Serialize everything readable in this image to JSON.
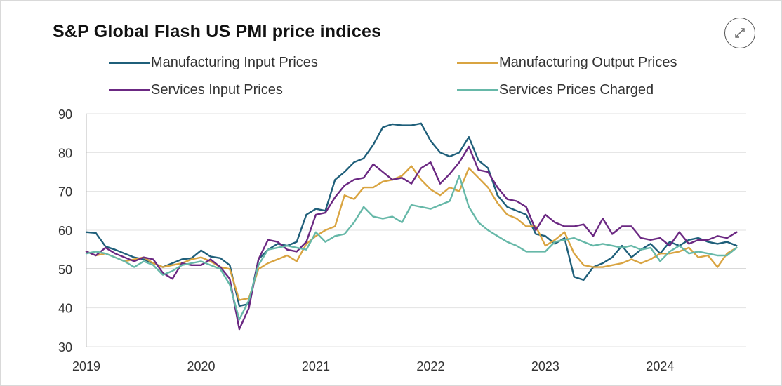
{
  "title": "S&P Global Flash US PMI price indices",
  "expand_icon": "expand-diagonal-arrows-icon",
  "chart_data": {
    "type": "line",
    "title": "S&P Global Flash US PMI price indices",
    "xlabel": "",
    "ylabel": "",
    "ylim": [
      30,
      90
    ],
    "xlim": [
      2019.0,
      2024.75
    ],
    "yticks": [
      "30",
      "40",
      "50",
      "60",
      "70",
      "80",
      "90"
    ],
    "xticks": [
      "2019",
      "2020",
      "2021",
      "2022",
      "2023",
      "2024"
    ],
    "grid": "horizontal",
    "legend_position": "top",
    "reference_line_y": 50,
    "x": [
      2019.0,
      2019.083,
      2019.167,
      2019.25,
      2019.333,
      2019.417,
      2019.5,
      2019.583,
      2019.667,
      2019.75,
      2019.833,
      2019.917,
      2020.0,
      2020.083,
      2020.167,
      2020.25,
      2020.333,
      2020.417,
      2020.5,
      2020.583,
      2020.667,
      2020.75,
      2020.833,
      2020.917,
      2021.0,
      2021.083,
      2021.167,
      2021.25,
      2021.333,
      2021.417,
      2021.5,
      2021.583,
      2021.667,
      2021.75,
      2021.833,
      2021.917,
      2022.0,
      2022.083,
      2022.167,
      2022.25,
      2022.333,
      2022.417,
      2022.5,
      2022.583,
      2022.667,
      2022.75,
      2022.833,
      2022.917,
      2023.0,
      2023.083,
      2023.167,
      2023.25,
      2023.333,
      2023.417,
      2023.5,
      2023.583,
      2023.667,
      2023.75,
      2023.833,
      2023.917,
      2024.0,
      2024.083,
      2024.167,
      2024.25,
      2024.333,
      2024.417,
      2024.5,
      2024.583,
      2024.667
    ],
    "series": [
      {
        "name": "Manufacturing Input Prices",
        "color": "#1f5f7a",
        "values": [
          59.5,
          59.3,
          55.8,
          55.0,
          54.0,
          53.0,
          52.5,
          51.5,
          50.5,
          51.5,
          52.5,
          52.8,
          54.8,
          53.2,
          52.8,
          51.0,
          40.5,
          41.0,
          52.5,
          55.0,
          56.5,
          56.0,
          57.0,
          64.0,
          65.5,
          65.0,
          73.0,
          75.0,
          77.5,
          78.5,
          82.0,
          86.5,
          87.3,
          87.0,
          87.0,
          87.5,
          83.0,
          80.0,
          79.0,
          80.0,
          84.0,
          78.0,
          76.0,
          69.0,
          66.0,
          65.0,
          64.0,
          59.0,
          58.5,
          56.5,
          58.0,
          48.0,
          47.2,
          50.5,
          51.5,
          53.0,
          56.0,
          53.0,
          55.0,
          56.5,
          54.0,
          57.0,
          56.0,
          57.5,
          58.0,
          57.0,
          56.5,
          57.0,
          56.0
        ]
      },
      {
        "name": "Manufacturing Output Prices",
        "color": "#d9a441",
        "values": [
          54.5,
          53.5,
          54.0,
          53.0,
          52.0,
          52.5,
          53.0,
          51.5,
          50.5,
          51.0,
          51.5,
          52.5,
          53.0,
          52.0,
          50.5,
          50.0,
          42.0,
          42.5,
          50.0,
          51.5,
          52.5,
          53.5,
          52.0,
          56.5,
          58.5,
          60.0,
          61.0,
          69.0,
          68.0,
          71.0,
          71.0,
          72.5,
          73.0,
          74.0,
          76.5,
          73.0,
          70.5,
          69.0,
          71.0,
          70.0,
          76.0,
          73.5,
          71.0,
          67.0,
          64.0,
          63.0,
          61.0,
          61.0,
          56.0,
          57.5,
          59.5,
          54.0,
          51.0,
          50.5,
          50.5,
          51.0,
          51.5,
          52.5,
          51.5,
          52.5,
          54.0,
          54.0,
          54.5,
          55.5,
          53.0,
          53.5,
          50.5,
          54.0,
          55.5
        ]
      },
      {
        "name": "Services Input Prices",
        "color": "#6b2882",
        "values": [
          54.5,
          53.5,
          55.5,
          54.0,
          53.0,
          52.0,
          53.0,
          52.5,
          49.0,
          47.5,
          51.5,
          51.0,
          51.0,
          52.5,
          50.5,
          47.5,
          34.5,
          40.0,
          52.5,
          57.5,
          57.0,
          55.0,
          54.5,
          57.0,
          64.0,
          64.5,
          68.5,
          71.5,
          73.0,
          73.5,
          77.0,
          75.0,
          73.0,
          73.5,
          72.0,
          76.0,
          77.5,
          72.0,
          74.5,
          77.5,
          81.5,
          75.5,
          75.0,
          71.0,
          68.0,
          67.5,
          66.0,
          60.0,
          64.0,
          62.0,
          61.0,
          61.0,
          61.5,
          58.5,
          63.0,
          59.0,
          61.0,
          61.0,
          58.0,
          57.5,
          58.0,
          56.0,
          59.5,
          56.5,
          57.5,
          57.5,
          58.5,
          58.0,
          59.5
        ]
      },
      {
        "name": "Services Prices Charged",
        "color": "#66b8a8",
        "values": [
          54.0,
          54.5,
          54.0,
          53.0,
          52.0,
          50.5,
          52.0,
          51.0,
          48.5,
          49.5,
          51.0,
          51.5,
          52.0,
          51.0,
          50.0,
          46.0,
          37.0,
          42.0,
          51.0,
          55.0,
          55.5,
          56.0,
          55.5,
          55.0,
          59.5,
          57.0,
          58.5,
          59.0,
          62.0,
          66.0,
          63.5,
          63.0,
          63.5,
          62.0,
          66.5,
          66.0,
          65.5,
          66.5,
          67.5,
          74.0,
          66.0,
          62.0,
          60.0,
          58.5,
          57.0,
          56.0,
          54.5,
          54.5,
          54.5,
          57.0,
          57.5,
          58.0,
          57.0,
          56.0,
          56.5,
          56.0,
          55.5,
          56.0,
          55.0,
          55.5,
          52.0,
          54.5,
          56.0,
          54.0,
          54.5,
          54.0,
          53.5,
          53.5,
          55.5
        ]
      }
    ]
  }
}
